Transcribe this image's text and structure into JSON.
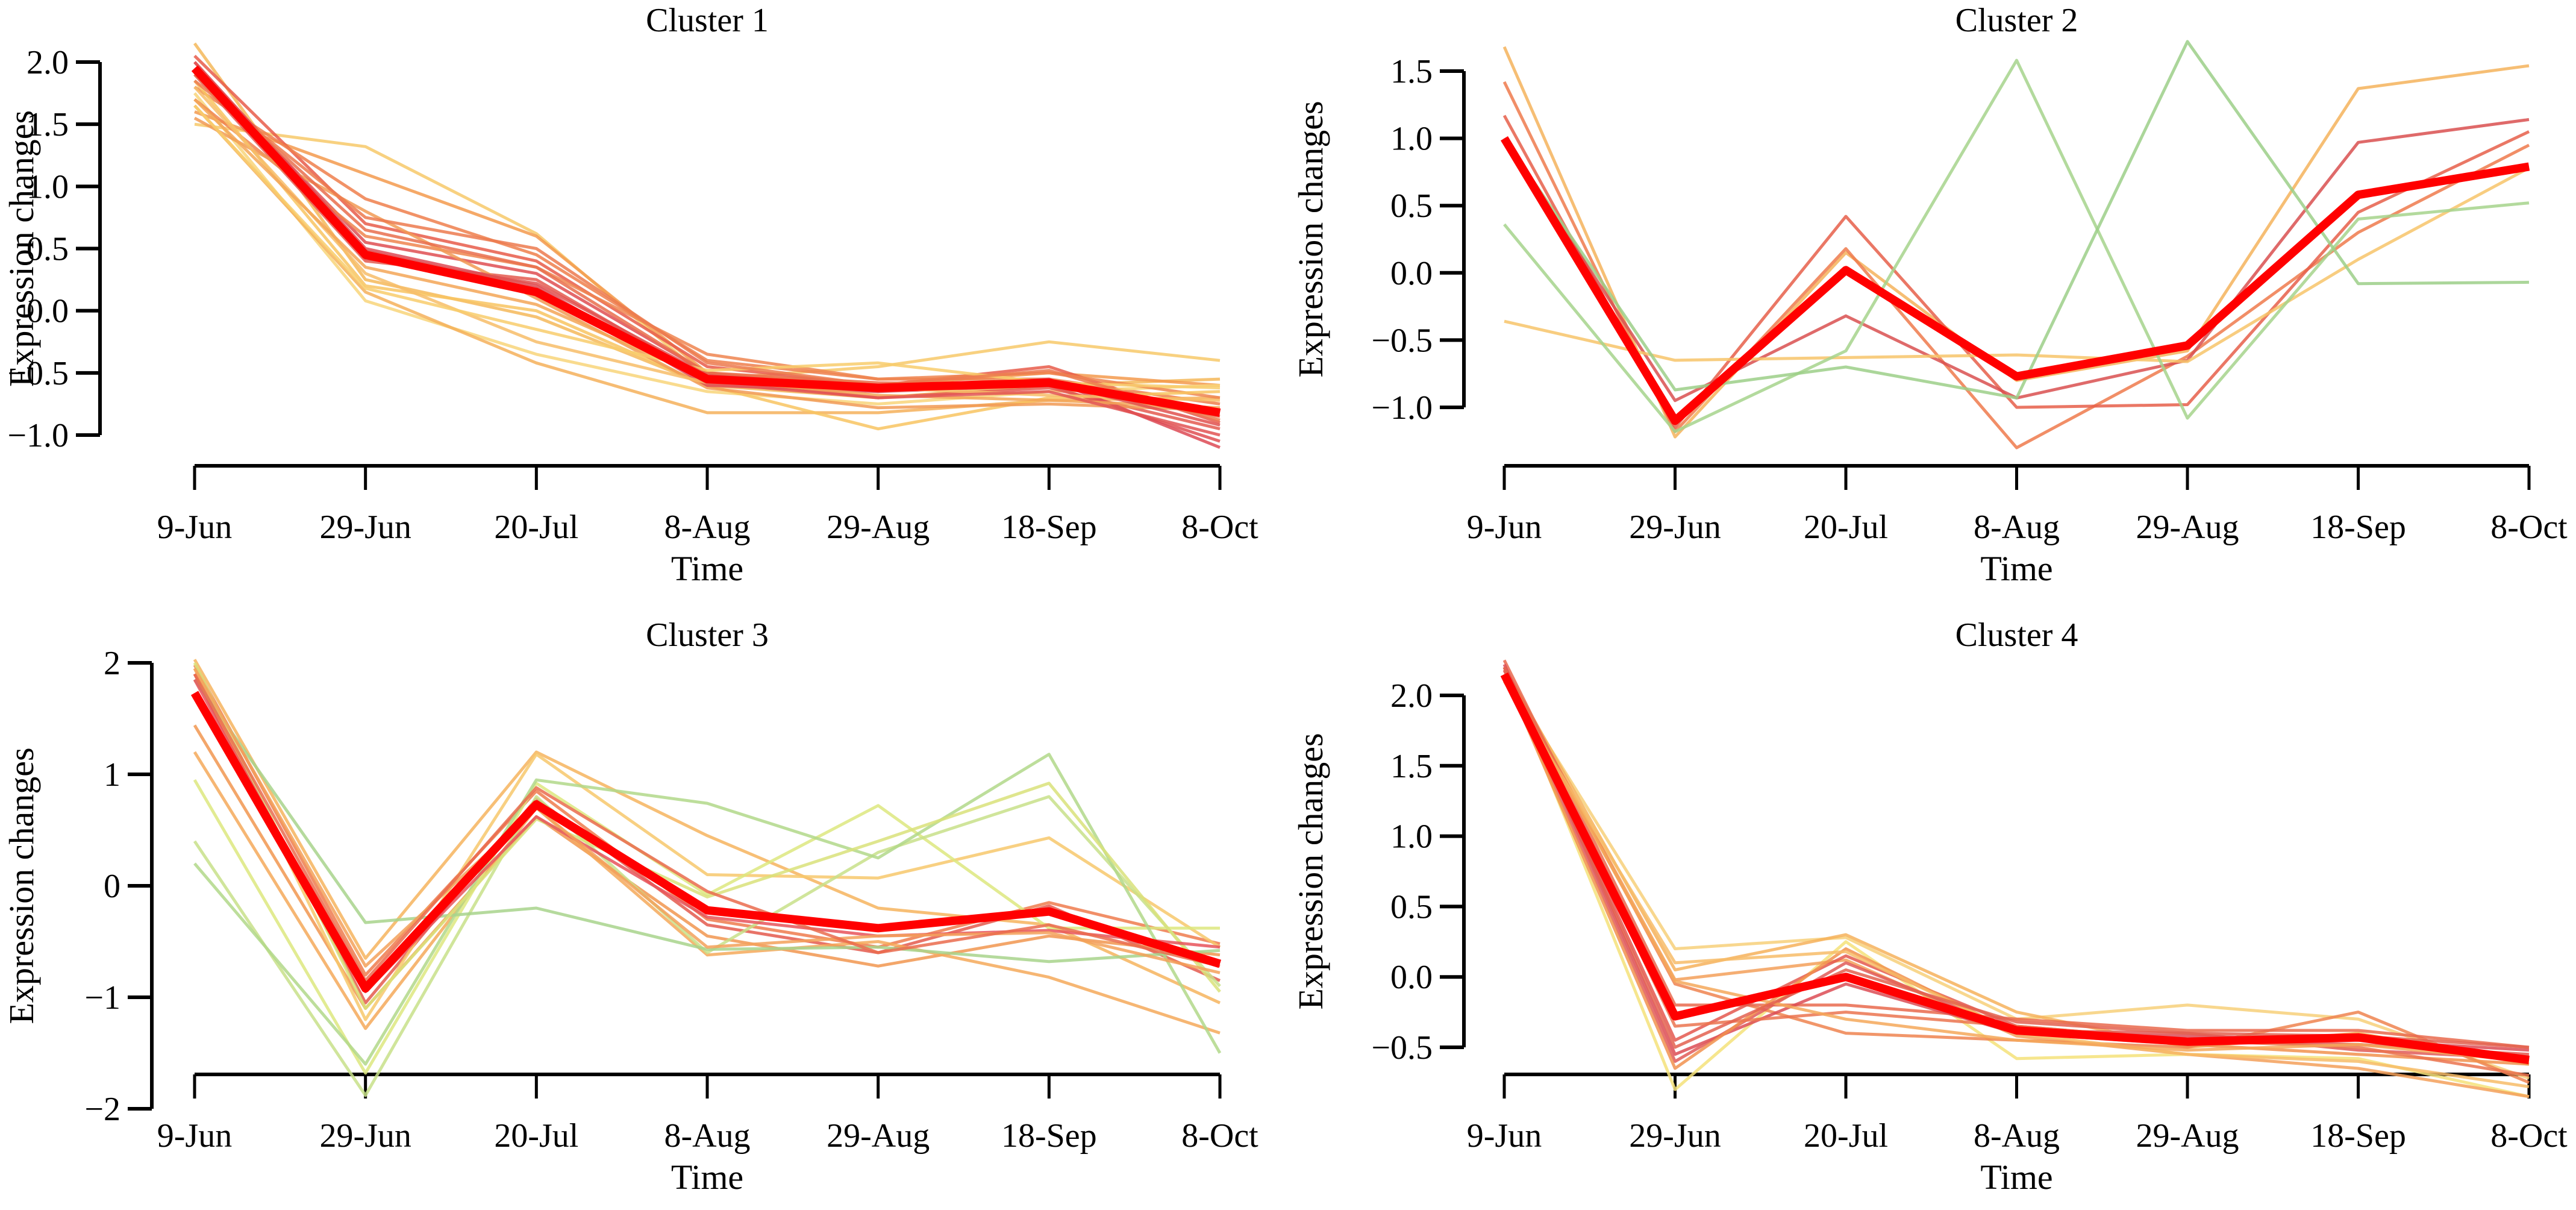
{
  "chart_data": [
    {
      "type": "line",
      "title": "Cluster 1",
      "xlabel": "Time",
      "ylabel": "Expression changes",
      "categories": [
        "9-Jun",
        "29-Jun",
        "20-Jul",
        "8-Aug",
        "29-Aug",
        "18-Sep",
        "8-Oct"
      ],
      "ylim": [
        -1.0,
        2.0
      ],
      "yticks": [
        -1.0,
        -0.5,
        0.0,
        0.5,
        1.0,
        1.5,
        2.0
      ],
      "ytick_labels": [
        "−1.0",
        "−0.5",
        "0.0",
        "0.5",
        "1.0",
        "1.5",
        "2.0"
      ],
      "grid": false,
      "mean": {
        "name": "cluster mean",
        "color": "#ff0000",
        "values": [
          1.95,
          0.45,
          0.15,
          -0.55,
          -0.62,
          -0.58,
          -0.82
        ]
      },
      "series": [
        {
          "color": "#f5b85a",
          "values": [
            2.15,
            0.25,
            -0.05,
            -0.6,
            -0.7,
            -0.6,
            -0.55
          ]
        },
        {
          "color": "#f7c96a",
          "values": [
            1.5,
            1.32,
            0.62,
            -0.55,
            -0.45,
            -0.25,
            -0.4
          ]
        },
        {
          "color": "#f39a4e",
          "values": [
            1.6,
            1.1,
            0.6,
            -0.5,
            -0.6,
            -0.5,
            -0.6
          ]
        },
        {
          "color": "#e85c4a",
          "values": [
            2.05,
            0.7,
            0.4,
            -0.45,
            -0.6,
            -0.45,
            -0.9
          ]
        },
        {
          "color": "#ef7f4c",
          "values": [
            1.8,
            0.9,
            0.45,
            -0.4,
            -0.55,
            -0.55,
            -0.75
          ]
        },
        {
          "color": "#f8d57a",
          "values": [
            1.75,
            0.08,
            -0.35,
            -0.65,
            -0.75,
            -0.65,
            -0.6
          ]
        },
        {
          "color": "#f5b05a",
          "values": [
            1.65,
            0.15,
            -0.42,
            -0.82,
            -0.82,
            -0.72,
            -0.7
          ]
        },
        {
          "color": "#df4f52",
          "values": [
            1.95,
            0.55,
            0.3,
            -0.5,
            -0.65,
            -0.6,
            -1.05
          ]
        },
        {
          "color": "#e45a50",
          "values": [
            1.9,
            0.4,
            0.25,
            -0.55,
            -0.7,
            -0.62,
            -0.95
          ]
        },
        {
          "color": "#ee8550",
          "values": [
            1.7,
            0.6,
            0.35,
            -0.35,
            -0.55,
            -0.5,
            -0.7
          ]
        },
        {
          "color": "#f8c462",
          "values": [
            1.85,
            0.2,
            0.0,
            -0.6,
            -0.95,
            -0.7,
            -0.65
          ]
        },
        {
          "color": "#f19a55",
          "values": [
            1.55,
            0.8,
            0.1,
            -0.62,
            -0.78,
            -0.75,
            -0.8
          ]
        },
        {
          "color": "#dd4a55",
          "values": [
            2.0,
            0.5,
            0.2,
            -0.6,
            -0.65,
            -0.55,
            -1.1
          ]
        },
        {
          "color": "#f7bd68",
          "values": [
            1.8,
            0.3,
            -0.25,
            -0.58,
            -0.62,
            -0.68,
            -0.72
          ]
        },
        {
          "color": "#e96e4d",
          "values": [
            1.9,
            0.65,
            0.35,
            -0.5,
            -0.58,
            -0.6,
            -0.85
          ]
        },
        {
          "color": "#f3a657",
          "values": [
            1.7,
            0.35,
            0.05,
            -0.55,
            -0.68,
            -0.72,
            -0.78
          ]
        },
        {
          "color": "#e25453",
          "values": [
            2.0,
            0.48,
            0.18,
            -0.58,
            -0.7,
            -0.65,
            -1.0
          ]
        },
        {
          "color": "#f8cc6c",
          "values": [
            1.65,
            0.18,
            -0.15,
            -0.48,
            -0.42,
            -0.58,
            -0.62
          ]
        },
        {
          "color": "#ec7a4f",
          "values": [
            1.85,
            0.75,
            0.5,
            -0.42,
            -0.6,
            -0.48,
            -0.88
          ]
        },
        {
          "color": "#e0514f",
          "values": [
            1.95,
            0.42,
            0.22,
            -0.52,
            -0.63,
            -0.57,
            -0.92
          ]
        }
      ]
    },
    {
      "type": "line",
      "title": "Cluster 2",
      "xlabel": "Time",
      "ylabel": "Expression changes",
      "categories": [
        "9-Jun",
        "29-Jun",
        "20-Jul",
        "8-Aug",
        "29-Aug",
        "18-Sep",
        "8-Oct"
      ],
      "ylim": [
        -1.0,
        1.5
      ],
      "yticks": [
        -1.0,
        -0.5,
        0.0,
        0.5,
        1.0,
        1.5
      ],
      "ytick_labels": [
        "−1.0",
        "−0.5",
        "0.0",
        "0.5",
        "1.0",
        "1.5"
      ],
      "grid": false,
      "mean": {
        "name": "cluster mean",
        "color": "#ff0000",
        "values": [
          1.0,
          -1.1,
          0.02,
          -0.77,
          -0.54,
          0.58,
          0.79
        ]
      },
      "series": [
        {
          "color": "#f5b35c",
          "values": [
            1.68,
            -1.22,
            0.15,
            -0.8,
            -0.58,
            1.37,
            1.54
          ]
        },
        {
          "color": "#ee7a4c",
          "values": [
            1.42,
            -1.18,
            0.18,
            -1.3,
            -0.62,
            0.3,
            0.95
          ]
        },
        {
          "color": "#e65f4a",
          "values": [
            1.17,
            -1.15,
            0.42,
            -1.0,
            -0.98,
            0.45,
            1.05
          ]
        },
        {
          "color": "#d95050",
          "values": [
            1.0,
            -0.95,
            -0.32,
            -0.93,
            -0.65,
            0.97,
            1.14
          ]
        },
        {
          "color": "#f7c46a",
          "values": [
            -0.36,
            -0.65,
            -0.63,
            -0.61,
            -0.66,
            0.1,
            0.78
          ]
        },
        {
          "color": "#a6d38c",
          "values": [
            0.36,
            -1.18,
            -0.58,
            1.58,
            -1.08,
            0.4,
            0.52
          ]
        },
        {
          "color": "#9ccf88",
          "values": [
            1.0,
            -0.87,
            -0.7,
            -0.93,
            1.72,
            -0.08,
            -0.07
          ]
        }
      ]
    },
    {
      "type": "line",
      "title": "Cluster 3",
      "xlabel": "Time",
      "ylabel": "Expression changes",
      "categories": [
        "9-Jun",
        "29-Jun",
        "20-Jul",
        "8-Aug",
        "29-Aug",
        "18-Sep",
        "8-Oct"
      ],
      "ylim": [
        -2,
        2
      ],
      "yticks": [
        -2,
        -1,
        0,
        1,
        2
      ],
      "ytick_labels": [
        "−2",
        "−1",
        "0",
        "1",
        "2"
      ],
      "grid": false,
      "mean": {
        "name": "cluster mean",
        "color": "#ff0000",
        "values": [
          1.73,
          -0.92,
          0.73,
          -0.22,
          -0.38,
          -0.23,
          -0.7
        ]
      },
      "series": [
        {
          "color": "#f6b45e",
          "values": [
            2.03,
            -0.65,
            1.2,
            0.45,
            -0.2,
            -0.35,
            -1.05
          ]
        },
        {
          "color": "#ee7b4d",
          "values": [
            1.98,
            -0.8,
            0.85,
            -0.3,
            -0.55,
            -0.15,
            -0.52
          ]
        },
        {
          "color": "#e45b4e",
          "values": [
            1.9,
            -1.05,
            0.78,
            -0.35,
            -0.6,
            -0.18,
            -0.85
          ]
        },
        {
          "color": "#f19650",
          "values": [
            1.44,
            -1.1,
            0.62,
            -0.45,
            -0.72,
            -0.45,
            -0.62
          ]
        },
        {
          "color": "#f5a95a",
          "values": [
            1.2,
            -1.28,
            0.7,
            -0.62,
            -0.5,
            -0.82,
            -1.32
          ]
        },
        {
          "color": "#f7c86c",
          "values": [
            1.95,
            -1.2,
            1.18,
            0.1,
            0.07,
            0.43,
            -0.55
          ]
        },
        {
          "color": "#dde77f",
          "values": [
            0.95,
            -1.68,
            0.92,
            -0.08,
            0.72,
            -0.38,
            -0.38
          ]
        },
        {
          "color": "#c8e08a",
          "values": [
            0.4,
            -1.88,
            0.8,
            -0.6,
            0.3,
            0.8,
            -0.9
          ]
        },
        {
          "color": "#b2d88a",
          "values": [
            0.2,
            -1.6,
            0.95,
            0.74,
            0.25,
            1.18,
            -1.5
          ]
        },
        {
          "color": "#a8d48c",
          "values": [
            1.85,
            -0.33,
            -0.2,
            -0.57,
            -0.55,
            -0.68,
            -0.58
          ]
        },
        {
          "color": "#d9e27a",
          "values": [
            2.0,
            -1.1,
            0.6,
            -0.1,
            0.4,
            0.92,
            -0.95
          ]
        },
        {
          "color": "#e8545a",
          "values": [
            1.85,
            -0.95,
            0.62,
            -0.28,
            -0.45,
            -0.4,
            -0.55
          ]
        },
        {
          "color": "#f3a15a",
          "values": [
            1.95,
            -0.72,
            0.7,
            -0.55,
            -0.45,
            -0.42,
            -0.78
          ]
        },
        {
          "color": "#ea6b4e",
          "values": [
            1.9,
            -0.85,
            0.88,
            -0.05,
            -0.6,
            -0.35,
            -0.72
          ]
        }
      ]
    },
    {
      "type": "line",
      "title": "Cluster 4",
      "xlabel": "Time",
      "ylabel": "Expression changes",
      "categories": [
        "9-Jun",
        "29-Jun",
        "20-Jul",
        "8-Aug",
        "29-Aug",
        "18-Sep",
        "8-Oct"
      ],
      "ylim": [
        -0.5,
        2.0
      ],
      "yticks": [
        -0.5,
        0.0,
        0.5,
        1.0,
        1.5,
        2.0
      ],
      "ytick_labels": [
        "−0.5",
        "0.0",
        "0.5",
        "1.0",
        "1.5",
        "2.0"
      ],
      "grid": false,
      "mean": {
        "name": "cluster mean",
        "color": "#ff0000",
        "values": [
          2.15,
          -0.28,
          0.0,
          -0.38,
          -0.46,
          -0.43,
          -0.59
        ]
      },
      "series": [
        {
          "color": "#f5e27a",
          "values": [
            2.2,
            -0.8,
            0.25,
            -0.58,
            -0.55,
            -0.58,
            -0.85
          ]
        },
        {
          "color": "#f7d07a",
          "values": [
            2.15,
            0.2,
            0.28,
            -0.3,
            -0.2,
            -0.3,
            -0.72
          ]
        },
        {
          "color": "#f6b15c",
          "values": [
            2.2,
            0.05,
            0.3,
            -0.25,
            -0.5,
            -0.4,
            -0.62
          ]
        },
        {
          "color": "#f3a05a",
          "values": [
            2.18,
            -0.02,
            0.12,
            -0.42,
            -0.55,
            -0.65,
            -0.85
          ]
        },
        {
          "color": "#ee8450",
          "values": [
            2.2,
            -0.05,
            -0.4,
            -0.45,
            -0.5,
            -0.25,
            -0.75
          ]
        },
        {
          "color": "#e96a4e",
          "values": [
            2.25,
            -0.2,
            -0.2,
            -0.3,
            -0.38,
            -0.38,
            -0.5
          ]
        },
        {
          "color": "#e4584f",
          "values": [
            2.2,
            -0.45,
            0.15,
            -0.35,
            -0.45,
            -0.48,
            -0.55
          ]
        },
        {
          "color": "#dc4c55",
          "values": [
            2.22,
            -0.55,
            -0.05,
            -0.4,
            -0.42,
            -0.45,
            -0.52
          ]
        },
        {
          "color": "#e05b58",
          "values": [
            2.18,
            -0.6,
            0.1,
            -0.38,
            -0.4,
            -0.52,
            -0.58
          ]
        },
        {
          "color": "#f1924f",
          "values": [
            2.15,
            -0.65,
            0.2,
            -0.4,
            -0.48,
            -0.55,
            -0.62
          ]
        },
        {
          "color": "#f7bc68",
          "values": [
            2.1,
            0.1,
            0.18,
            -0.4,
            -0.55,
            -0.6,
            -0.78
          ]
        },
        {
          "color": "#eb7450",
          "values": [
            2.2,
            -0.35,
            -0.25,
            -0.35,
            -0.45,
            -0.5,
            -0.7
          ]
        },
        {
          "color": "#f5a85a",
          "values": [
            2.15,
            -0.03,
            -0.3,
            -0.45,
            -0.52,
            -0.48,
            -0.6
          ]
        },
        {
          "color": "#e36250",
          "values": [
            2.2,
            -0.5,
            0.05,
            -0.32,
            -0.4,
            -0.42,
            -0.5
          ]
        }
      ]
    }
  ]
}
